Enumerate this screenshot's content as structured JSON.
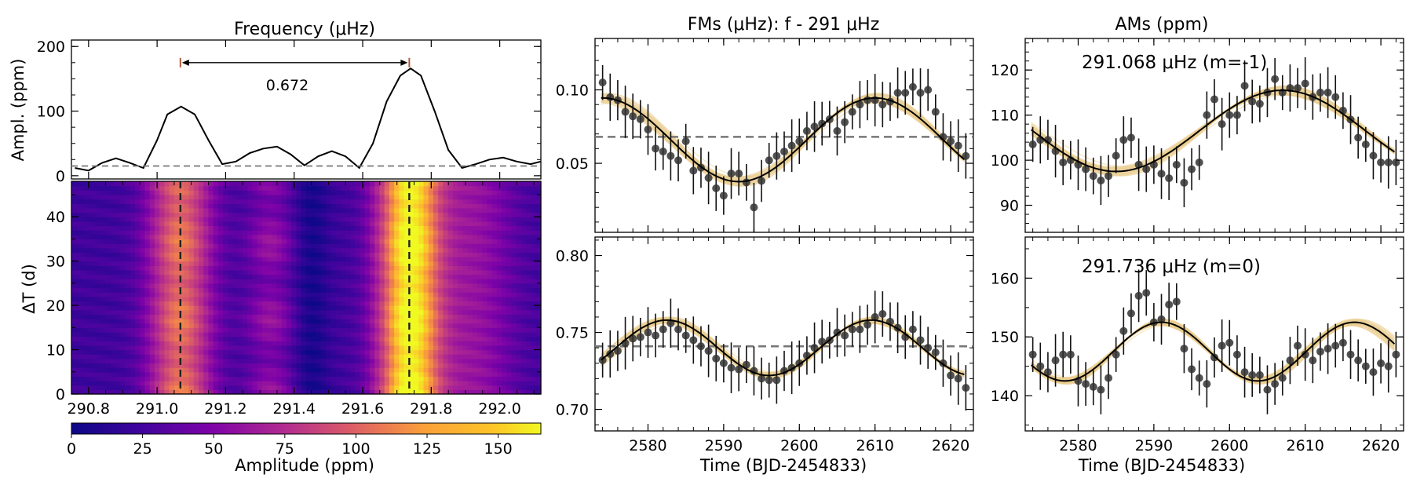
{
  "chart_data": [
    {
      "type": "line",
      "panel": "periodogram",
      "title": "Frequency (μHz)",
      "xlabel": "",
      "ylabel": "Ampl. (ppm)",
      "xlim": [
        290.75,
        292.12
      ],
      "ylim": [
        -5,
        210
      ],
      "yticks": [
        0,
        100,
        200
      ],
      "threshold": 15,
      "annotation": {
        "text": "0.672",
        "x_from": 291.068,
        "x_to": 291.736,
        "y": 175
      },
      "x": [
        290.76,
        290.8,
        290.84,
        290.88,
        290.92,
        290.96,
        291.0,
        291.03,
        291.07,
        291.11,
        291.15,
        291.19,
        291.23,
        291.27,
        291.31,
        291.35,
        291.39,
        291.43,
        291.47,
        291.51,
        291.55,
        291.59,
        291.63,
        291.67,
        291.71,
        291.74,
        291.77,
        291.81,
        291.85,
        291.89,
        291.93,
        291.97,
        292.01,
        292.05,
        292.09,
        292.12
      ],
      "y": [
        12,
        8,
        20,
        27,
        20,
        12,
        55,
        95,
        107,
        95,
        55,
        18,
        22,
        35,
        42,
        45,
        33,
        16,
        30,
        38,
        30,
        12,
        50,
        115,
        155,
        166,
        155,
        100,
        40,
        12,
        18,
        25,
        28,
        22,
        18,
        22
      ]
    },
    {
      "type": "heatmap",
      "panel": "dynamic-periodogram",
      "xlabel": "",
      "ylabel": "ΔT (d)",
      "xlim": [
        290.75,
        292.12
      ],
      "ylim": [
        0,
        48
      ],
      "xticks": [
        290.8,
        291.0,
        291.2,
        291.4,
        291.6,
        291.8,
        292.0
      ],
      "yticks": [
        0,
        10,
        20,
        30,
        40
      ],
      "vlines": [
        291.068,
        291.736
      ],
      "colorbar": {
        "label": "Amplitude (ppm)",
        "min": 0,
        "max": 165,
        "ticks": [
          0,
          25,
          50,
          75,
          100,
          125,
          150
        ]
      }
    },
    {
      "type": "scatter",
      "panel": "fm-top",
      "title": "FMs (μHz): f - 291 μHz",
      "xlim": [
        2573,
        2623
      ],
      "ylim": [
        0.003,
        0.135
      ],
      "yticks": [
        0.05,
        0.1
      ],
      "hline": 0.068,
      "model": {
        "offset": 0.066,
        "amplitude": 0.0285,
        "period": 36,
        "t_max": 2610
      },
      "x": [
        2574,
        2575,
        2576,
        2577,
        2578,
        2579,
        2580,
        2581,
        2582,
        2583,
        2584,
        2585,
        2586,
        2587,
        2588,
        2589,
        2590,
        2591,
        2592,
        2593,
        2594,
        2595,
        2596,
        2597,
        2598,
        2599,
        2600,
        2601,
        2602,
        2603,
        2604,
        2605,
        2606,
        2607,
        2608,
        2609,
        2610,
        2611,
        2612,
        2613,
        2614,
        2615,
        2616,
        2617,
        2618,
        2619,
        2620,
        2621,
        2622
      ],
      "y": [
        0.105,
        0.095,
        0.093,
        0.085,
        0.082,
        0.08,
        0.073,
        0.06,
        0.058,
        0.055,
        0.052,
        0.065,
        0.045,
        0.047,
        0.04,
        0.033,
        0.028,
        0.043,
        0.043,
        0.037,
        0.02,
        0.038,
        0.052,
        0.055,
        0.058,
        0.062,
        0.065,
        0.072,
        0.075,
        0.077,
        0.08,
        0.072,
        0.078,
        0.085,
        0.09,
        0.093,
        0.093,
        0.09,
        0.092,
        0.098,
        0.098,
        0.102,
        0.098,
        0.1,
        0.085,
        0.068,
        0.065,
        0.062,
        0.055
      ]
    },
    {
      "type": "scatter",
      "panel": "am-top",
      "title": "AMs (ppm)",
      "label": "291.068 μHz (m=-1)",
      "xlim": [
        2573,
        2623
      ],
      "ylim": [
        84,
        127
      ],
      "yticks": [
        90,
        100,
        110,
        120
      ],
      "model": {
        "offset": 106.5,
        "amplitude": 9,
        "period": 44,
        "t_max": 2607
      },
      "x": [
        2574,
        2575,
        2576,
        2577,
        2578,
        2579,
        2580,
        2581,
        2582,
        2583,
        2584,
        2585,
        2586,
        2587,
        2588,
        2589,
        2590,
        2591,
        2592,
        2593,
        2594,
        2595,
        2596,
        2597,
        2598,
        2599,
        2600,
        2601,
        2602,
        2603,
        2604,
        2605,
        2606,
        2607,
        2608,
        2609,
        2610,
        2611,
        2612,
        2613,
        2614,
        2615,
        2616,
        2617,
        2618,
        2619,
        2620,
        2621,
        2622
      ],
      "y": [
        103.5,
        104.5,
        104.5,
        102,
        99.5,
        100,
        99,
        98,
        96.5,
        95.5,
        96.5,
        101,
        104.5,
        105,
        99,
        98,
        99,
        97,
        96,
        99,
        95,
        98,
        99.5,
        110,
        113.5,
        108,
        110,
        110,
        116.5,
        113,
        112.5,
        115,
        118,
        115,
        116,
        116,
        117,
        114,
        115,
        115,
        114,
        111,
        109,
        105,
        103.5,
        101,
        99.5,
        99.5,
        99.5
      ]
    },
    {
      "type": "scatter",
      "panel": "fm-bottom",
      "xlabel": "Time (BJD-2454833)",
      "xlim": [
        2573,
        2623
      ],
      "ylim": [
        0.686,
        0.812
      ],
      "xticks": [
        2580,
        2590,
        2600,
        2610,
        2620
      ],
      "yticks": [
        0.7,
        0.75,
        0.8
      ],
      "hline": 0.741,
      "model": {
        "offset": 0.74,
        "amplitude": 0.018,
        "period": 27,
        "t_max": 2609.5
      },
      "x": [
        2574,
        2575,
        2576,
        2577,
        2578,
        2579,
        2580,
        2581,
        2582,
        2583,
        2584,
        2585,
        2586,
        2587,
        2588,
        2589,
        2590,
        2591,
        2592,
        2593,
        2594,
        2595,
        2596,
        2597,
        2598,
        2599,
        2600,
        2601,
        2602,
        2603,
        2604,
        2605,
        2606,
        2607,
        2608,
        2609,
        2610,
        2611,
        2612,
        2613,
        2614,
        2615,
        2616,
        2617,
        2618,
        2619,
        2620,
        2621,
        2622
      ],
      "y": [
        0.732,
        0.736,
        0.738,
        0.743,
        0.746,
        0.747,
        0.75,
        0.748,
        0.752,
        0.756,
        0.752,
        0.748,
        0.745,
        0.741,
        0.738,
        0.733,
        0.73,
        0.727,
        0.726,
        0.729,
        0.725,
        0.72,
        0.719,
        0.719,
        0.725,
        0.727,
        0.73,
        0.735,
        0.74,
        0.744,
        0.745,
        0.75,
        0.748,
        0.752,
        0.752,
        0.755,
        0.76,
        0.762,
        0.757,
        0.753,
        0.747,
        0.752,
        0.745,
        0.74,
        0.737,
        0.73,
        0.722,
        0.72,
        0.714
      ]
    },
    {
      "type": "scatter",
      "panel": "am-bottom",
      "label": "291.736 μHz (m=0)",
      "xlabel": "Time (BJD-2454833)",
      "xlim": [
        2573,
        2623
      ],
      "ylim": [
        134,
        167
      ],
      "xticks": [
        2580,
        2590,
        2600,
        2610,
        2620
      ],
      "yticks": [
        140,
        150,
        160
      ],
      "model": {
        "offset": 147.5,
        "amplitude": 5,
        "period": 25.5,
        "t_max": 2591
      },
      "x": [
        2574,
        2575,
        2576,
        2577,
        2578,
        2579,
        2580,
        2581,
        2582,
        2583,
        2584,
        2585,
        2586,
        2587,
        2588,
        2589,
        2590,
        2591,
        2592,
        2593,
        2594,
        2595,
        2596,
        2597,
        2598,
        2599,
        2600,
        2601,
        2602,
        2603,
        2604,
        2605,
        2606,
        2607,
        2608,
        2609,
        2610,
        2611,
        2612,
        2613,
        2614,
        2615,
        2616,
        2617,
        2618,
        2619,
        2620,
        2621,
        2622
      ],
      "y": [
        147,
        145,
        144,
        146,
        147,
        147,
        142.5,
        142,
        141.5,
        141,
        143,
        147,
        151,
        154,
        157,
        157.5,
        152.5,
        153,
        155.5,
        156,
        148,
        144.5,
        143,
        142,
        146.5,
        148.5,
        149,
        147,
        144,
        143.5,
        143.5,
        141,
        142,
        143,
        146,
        148.5,
        147,
        146,
        147.5,
        148,
        148.5,
        149,
        147,
        146,
        145,
        144,
        145.5,
        145,
        147
      ]
    }
  ]
}
